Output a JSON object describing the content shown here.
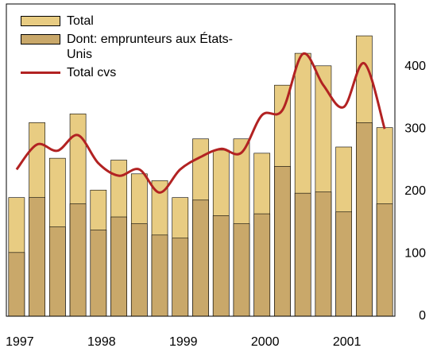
{
  "chart_data": {
    "type": "bar",
    "categories": [
      "1997",
      null,
      null,
      null,
      "1998",
      null,
      null,
      null,
      "1999",
      null,
      null,
      null,
      "2000",
      null,
      null,
      null,
      "2001",
      null,
      null
    ],
    "series": [
      {
        "name": "Total",
        "color": "#e8cc82",
        "values": [
          190,
          310,
          253,
          324,
          202,
          250,
          228,
          217,
          190,
          284,
          266,
          284,
          261,
          370,
          421,
          401,
          271,
          449,
          302
        ]
      },
      {
        "name": "Dont: emprunteurs aux États-Unis",
        "color": "#c9a86a",
        "values": [
          102,
          190,
          143,
          180,
          138,
          159,
          148,
          130,
          125,
          186,
          161,
          148,
          164,
          240,
          197,
          199,
          167,
          310,
          180
        ]
      },
      {
        "name": "Total cvs",
        "type": "line",
        "color": "#b22222",
        "values": [
          235,
          275,
          265,
          290,
          245,
          225,
          235,
          198,
          235,
          255,
          268,
          262,
          322,
          330,
          420,
          370,
          335,
          405,
          300
        ]
      }
    ],
    "ylim": [
      0,
      500
    ],
    "yticks": [
      0,
      100,
      200,
      300,
      400
    ],
    "y_axis_side": "right",
    "grid": false,
    "legend": "top-left"
  }
}
